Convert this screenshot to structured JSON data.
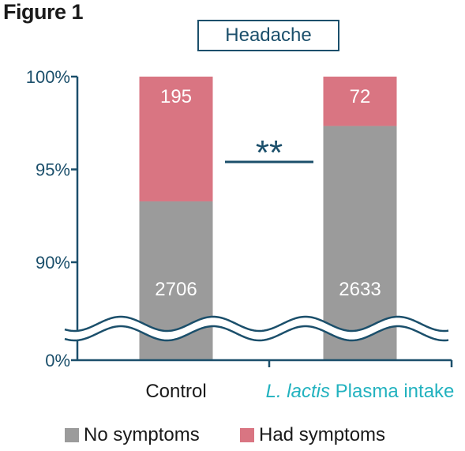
{
  "figure_label": "Figure 1",
  "chart_data": {
    "type": "bar",
    "stacked": true,
    "title": "Headache",
    "categories": [
      "Control",
      "L. lactis Plasma intake"
    ],
    "category_parts": [
      {
        "italic": "",
        "plain": "Control",
        "color": "#1a1a1a"
      },
      {
        "italic": "L. lactis",
        "plain": " Plasma intake",
        "color": "#22b2bf"
      }
    ],
    "series": [
      {
        "name": "No symptoms",
        "values": [
          2706,
          2633
        ],
        "color": "#9b9b9b"
      },
      {
        "name": "Had symptoms",
        "values": [
          195,
          72
        ],
        "color": "#d97582"
      }
    ],
    "y_ticks": [
      "100%",
      "95%",
      "90%",
      "0%"
    ],
    "ylim": [
      90,
      100
    ],
    "axis_break": true,
    "significance": "**",
    "legend_position": "bottom",
    "colors": {
      "axis": "#1b4f6b",
      "bar_label": "#ffffff"
    }
  }
}
